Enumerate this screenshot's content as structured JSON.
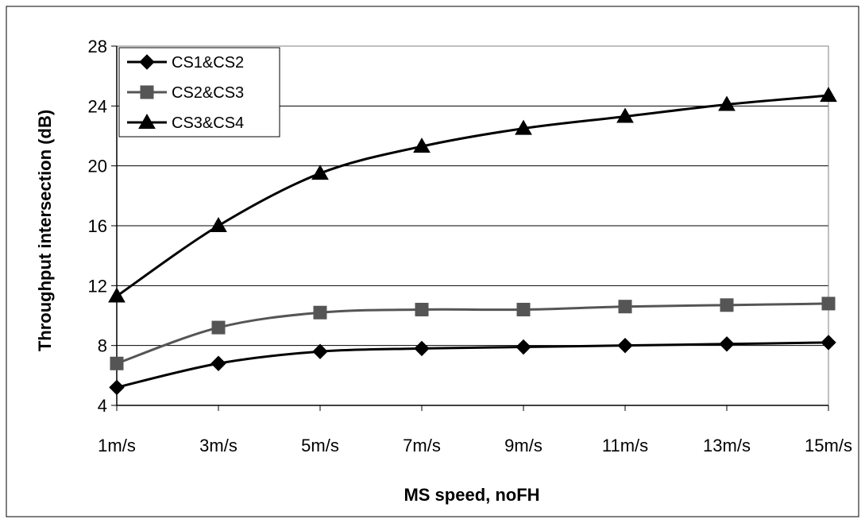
{
  "chart_data": {
    "type": "line",
    "title": "",
    "xlabel": "MS speed, noFH",
    "ylabel": "Throughput intersection (dB)",
    "categories": [
      "1m/s",
      "3m/s",
      "5m/s",
      "7m/s",
      "9m/s",
      "11m/s",
      "13m/s",
      "15m/s"
    ],
    "ylim": [
      4,
      28
    ],
    "yticks": [
      4,
      8,
      12,
      16,
      20,
      24,
      28
    ],
    "grid": "horizontal",
    "legend_position": "top-left",
    "series": [
      {
        "name": "CS1&CS2",
        "marker": "diamond",
        "color": "#000000",
        "values": [
          5.2,
          6.8,
          7.6,
          7.8,
          7.9,
          8.0,
          8.1,
          8.2
        ]
      },
      {
        "name": "CS2&CS3",
        "marker": "square",
        "color": "#555555",
        "values": [
          6.8,
          9.2,
          10.2,
          10.4,
          10.4,
          10.6,
          10.7,
          10.8
        ]
      },
      {
        "name": "CS3&CS4",
        "marker": "triangle",
        "color": "#000000",
        "values": [
          11.3,
          16.0,
          19.5,
          21.3,
          22.5,
          23.3,
          24.1,
          24.7
        ]
      }
    ]
  }
}
